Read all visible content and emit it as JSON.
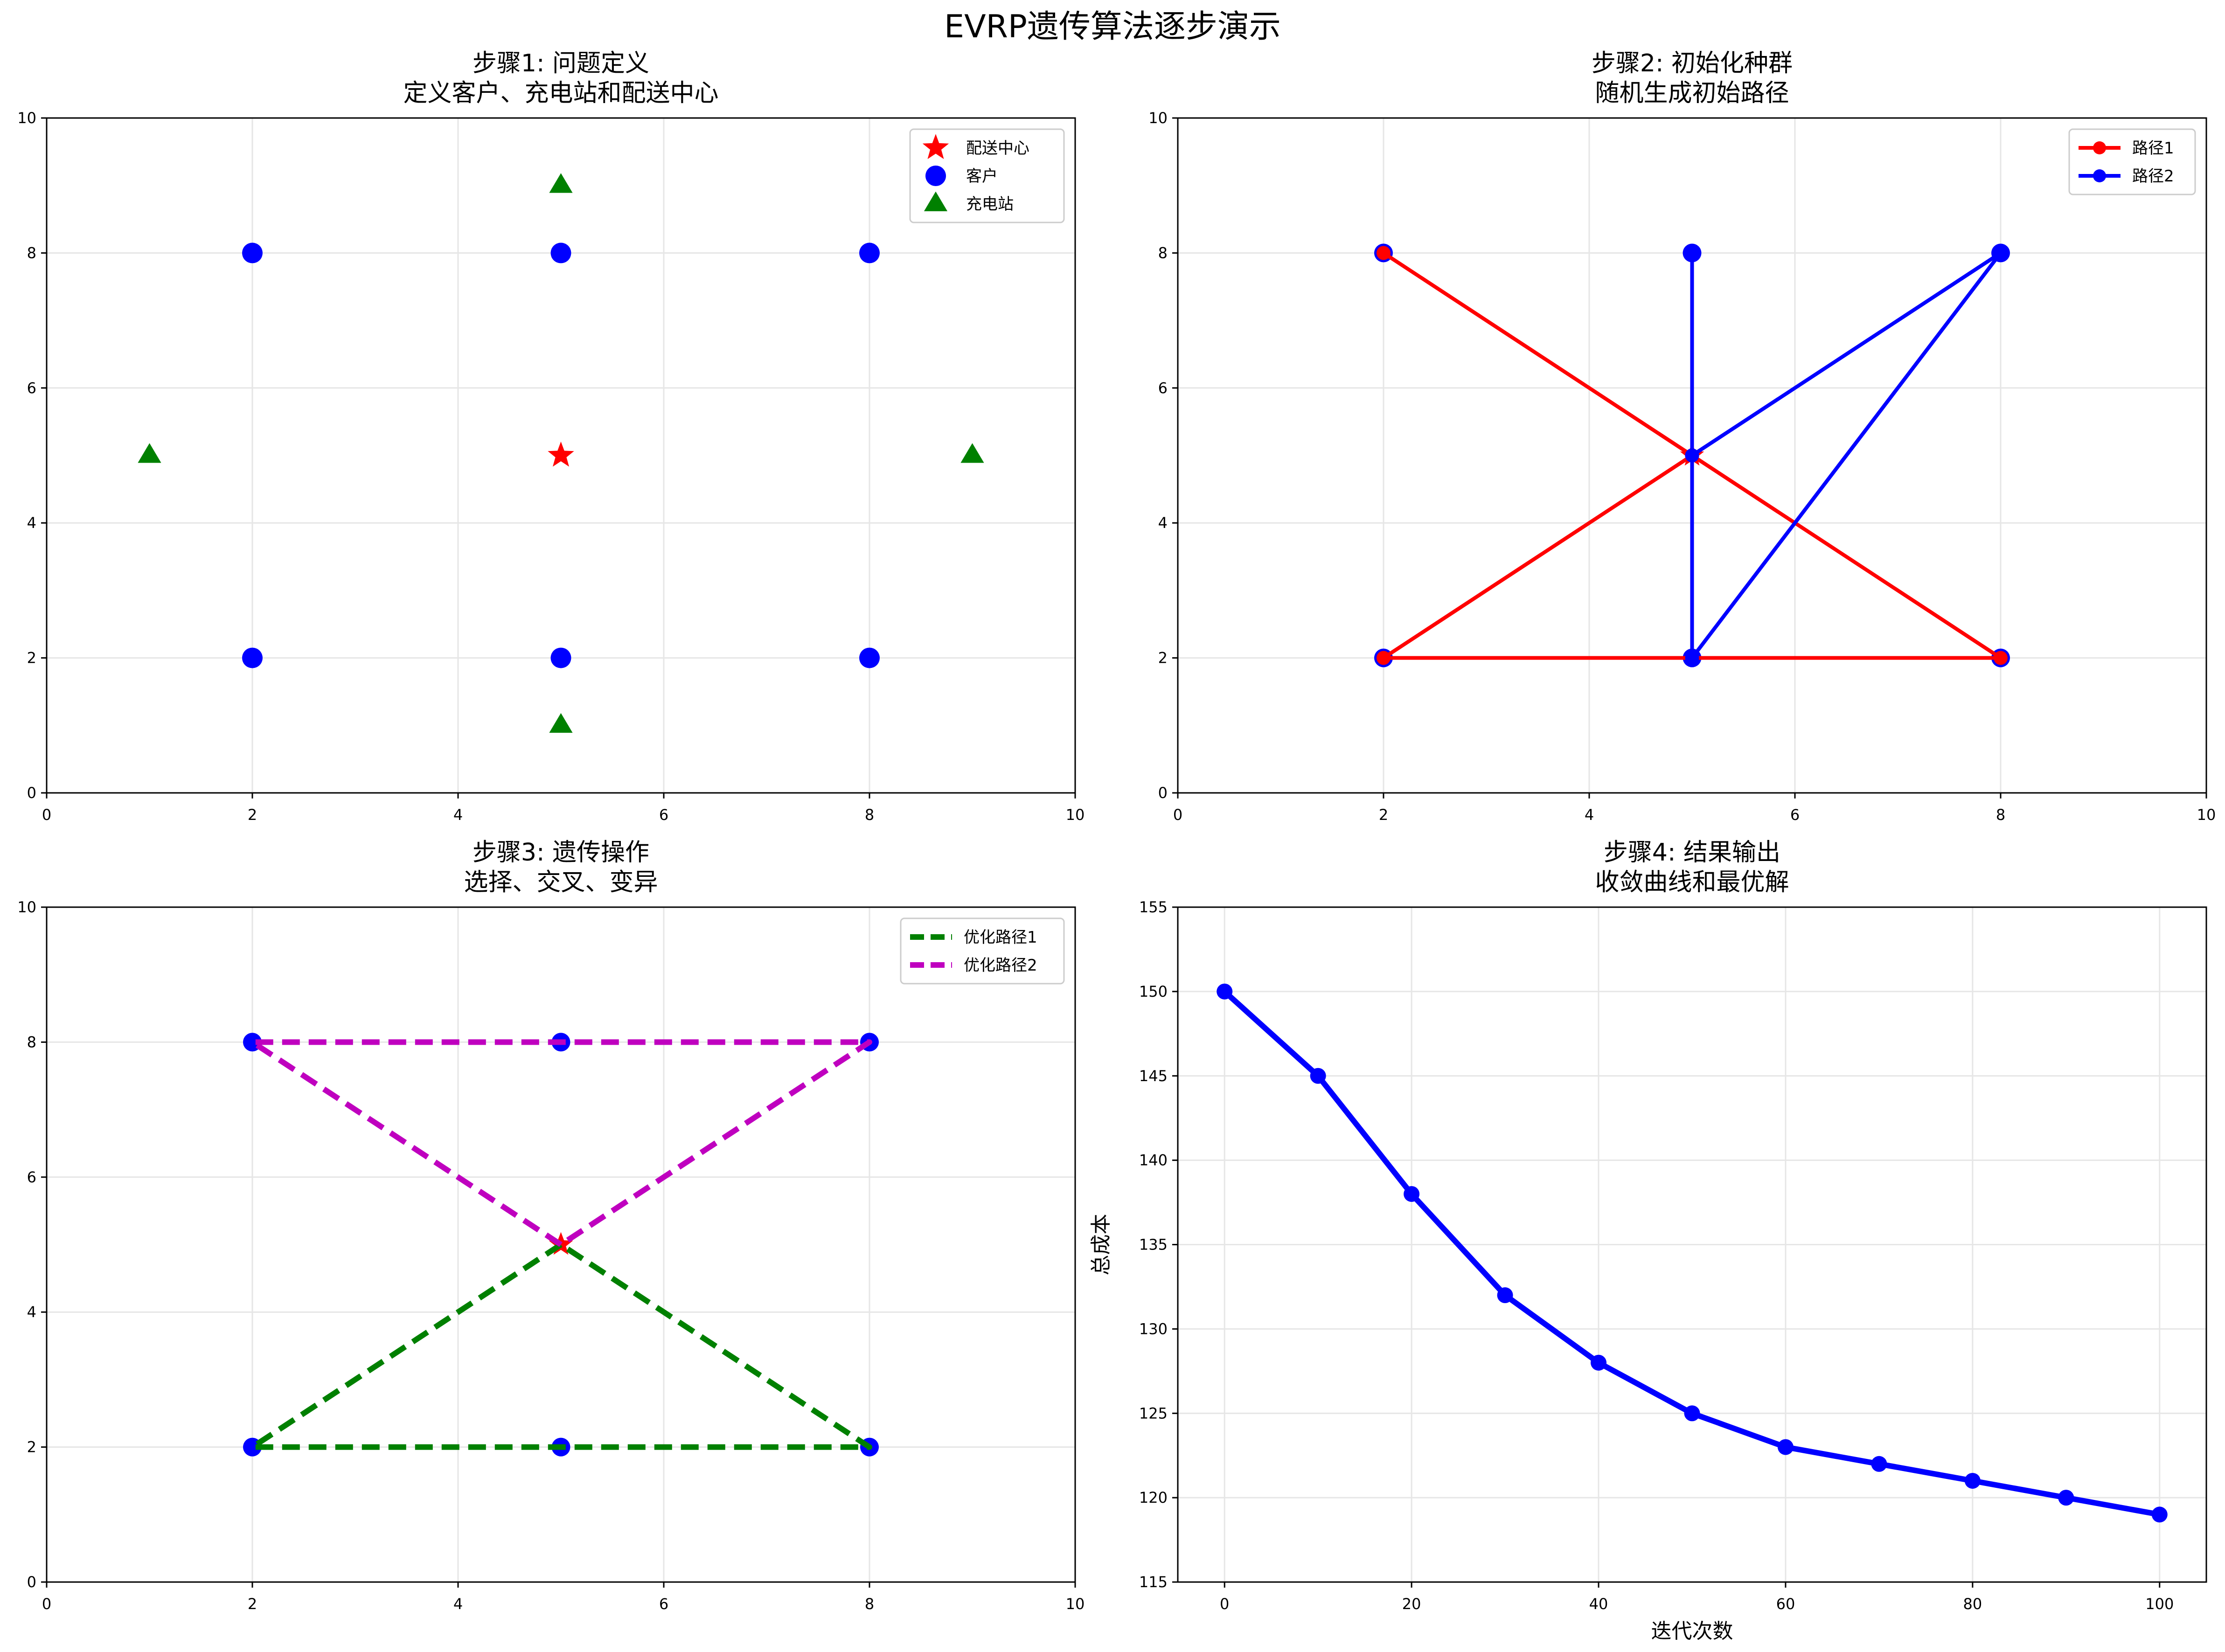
{
  "figure": {
    "title": "EVRP遗传算法逐步演示"
  },
  "colors": {
    "red": "#ff0000",
    "blue": "#0000ff",
    "green": "#008000",
    "magenta": "#bf00bf",
    "grid": "#e6e6e6"
  },
  "chart_data": [
    {
      "type": "scatter",
      "title": "步骤1: 问题定义\n定义客户、充电站和配送中心",
      "xlim": [
        0,
        10
      ],
      "ylim": [
        0,
        10
      ],
      "xticks": [
        0,
        2,
        4,
        6,
        8,
        10
      ],
      "yticks": [
        0,
        2,
        4,
        6,
        8,
        10
      ],
      "grid": true,
      "legend_position": "top-right",
      "series": [
        {
          "name": "配送中心",
          "marker": "star",
          "color": "#ff0000",
          "points": [
            [
              5,
              5
            ]
          ]
        },
        {
          "name": "客户",
          "marker": "circle",
          "color": "#0000ff",
          "points": [
            [
              2,
              2
            ],
            [
              5,
              2
            ],
            [
              8,
              2
            ],
            [
              2,
              8
            ],
            [
              5,
              8
            ],
            [
              8,
              8
            ]
          ]
        },
        {
          "name": "充电站",
          "marker": "triangle",
          "color": "#008000",
          "points": [
            [
              1,
              5
            ],
            [
              9,
              5
            ],
            [
              5,
              1
            ],
            [
              5,
              9
            ]
          ]
        }
      ]
    },
    {
      "type": "line",
      "title": "步骤2: 初始化种群\n随机生成初始路径",
      "xlim": [
        0,
        10
      ],
      "ylim": [
        0,
        10
      ],
      "xticks": [
        0,
        2,
        4,
        6,
        8,
        10
      ],
      "yticks": [
        0,
        2,
        4,
        6,
        8,
        10
      ],
      "grid": true,
      "legend_position": "top-right",
      "background_points": [
        {
          "marker": "star",
          "color": "#ff0000",
          "points": [
            [
              5,
              5
            ]
          ]
        },
        {
          "marker": "circle",
          "color": "#0000ff",
          "points": [
            [
              2,
              2
            ],
            [
              5,
              2
            ],
            [
              8,
              2
            ],
            [
              2,
              8
            ],
            [
              5,
              8
            ],
            [
              8,
              8
            ]
          ]
        }
      ],
      "series": [
        {
          "name": "路径1",
          "color": "#ff0000",
          "style": "solid",
          "marker": "circle",
          "points": [
            [
              5,
              5
            ],
            [
              2,
              2
            ],
            [
              8,
              2
            ],
            [
              5,
              5
            ],
            [
              2,
              8
            ]
          ]
        },
        {
          "name": "路径2",
          "color": "#0000ff",
          "style": "solid",
          "marker": "circle",
          "points": [
            [
              5,
              5
            ],
            [
              8,
              8
            ],
            [
              5,
              2
            ],
            [
              5,
              8
            ],
            [
              5,
              5
            ]
          ]
        }
      ]
    },
    {
      "type": "line",
      "title": "步骤3: 遗传操作\n选择、交叉、变异",
      "xlim": [
        0,
        10
      ],
      "ylim": [
        0,
        10
      ],
      "xticks": [
        0,
        2,
        4,
        6,
        8,
        10
      ],
      "yticks": [
        0,
        2,
        4,
        6,
        8,
        10
      ],
      "grid": true,
      "legend_position": "top-right",
      "background_points": [
        {
          "marker": "star",
          "color": "#ff0000",
          "points": [
            [
              5,
              5
            ]
          ]
        },
        {
          "marker": "circle",
          "color": "#0000ff",
          "points": [
            [
              2,
              2
            ],
            [
              5,
              2
            ],
            [
              8,
              2
            ],
            [
              2,
              8
            ],
            [
              5,
              8
            ],
            [
              8,
              8
            ]
          ]
        }
      ],
      "series": [
        {
          "name": "优化路径1",
          "color": "#008000",
          "style": "dashed",
          "points": [
            [
              5,
              5
            ],
            [
              2,
              2
            ],
            [
              5,
              2
            ],
            [
              8,
              2
            ],
            [
              5,
              5
            ]
          ]
        },
        {
          "name": "优化路径2",
          "color": "#bf00bf",
          "style": "dashed",
          "points": [
            [
              5,
              5
            ],
            [
              2,
              8
            ],
            [
              5,
              8
            ],
            [
              8,
              8
            ],
            [
              5,
              5
            ]
          ]
        }
      ]
    },
    {
      "type": "line",
      "title": "步骤4: 结果输出\n收敛曲线和最优解",
      "xlabel": "迭代次数",
      "ylabel": "总成本",
      "xlim": [
        -5,
        105
      ],
      "ylim": [
        115,
        155
      ],
      "xticks": [
        0,
        20,
        40,
        60,
        80,
        100
      ],
      "yticks": [
        115,
        120,
        125,
        130,
        135,
        140,
        145,
        150,
        155
      ],
      "grid": true,
      "series": [
        {
          "color": "#0000ff",
          "style": "solid",
          "marker": "circle",
          "points": [
            [
              0,
              150
            ],
            [
              10,
              145
            ],
            [
              20,
              138
            ],
            [
              30,
              132
            ],
            [
              40,
              128
            ],
            [
              50,
              125
            ],
            [
              60,
              123
            ],
            [
              70,
              122
            ],
            [
              80,
              121
            ],
            [
              90,
              120
            ],
            [
              100,
              119
            ]
          ]
        }
      ]
    }
  ]
}
